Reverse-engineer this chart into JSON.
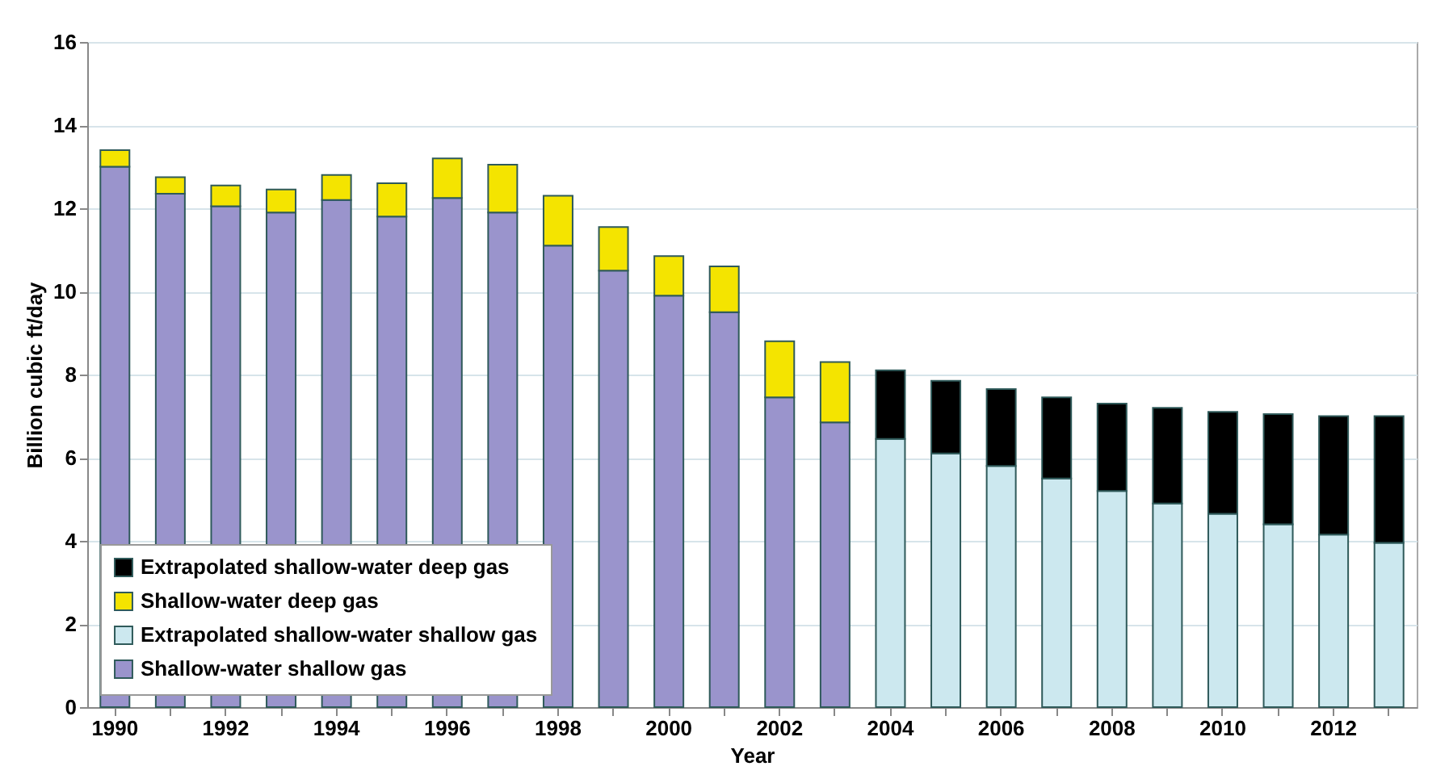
{
  "chart_data": {
    "type": "bar",
    "stacked": true,
    "xlabel": "Year",
    "ylabel": "Billion cubic ft/day",
    "categories": [
      "1990",
      null,
      "1992",
      null,
      "1994",
      null,
      "1996",
      null,
      "1998",
      null,
      "2000",
      null,
      "2002",
      null,
      "2004",
      null,
      "2006",
      null,
      "2008",
      null,
      "2010",
      null,
      "2012",
      null
    ],
    "series": [
      {
        "name": "Shallow-water shallow gas",
        "color": "#9a94cc",
        "values": [
          13.0,
          12.35,
          12.05,
          11.9,
          12.2,
          11.8,
          12.25,
          11.9,
          11.1,
          10.5,
          9.9,
          9.5,
          7.45,
          6.85,
          null,
          null,
          null,
          null,
          null,
          null,
          null,
          null,
          null,
          null
        ]
      },
      {
        "name": "Extrapolated shallow-water shallow gas",
        "color": "#cce8ef",
        "values": [
          null,
          null,
          null,
          null,
          null,
          null,
          null,
          null,
          null,
          null,
          null,
          null,
          null,
          null,
          6.45,
          6.1,
          5.8,
          5.5,
          5.2,
          4.9,
          4.65,
          4.4,
          4.15,
          3.95
        ]
      },
      {
        "name": "Shallow-water deep gas",
        "color": "#f4e400",
        "values": [
          0.4,
          0.4,
          0.5,
          0.55,
          0.6,
          0.8,
          0.95,
          1.15,
          1.2,
          1.05,
          0.95,
          1.1,
          1.35,
          1.45,
          null,
          null,
          null,
          null,
          null,
          null,
          null,
          null,
          null,
          null
        ]
      },
      {
        "name": "Extrapolated shallow-water deep gas",
        "color": "#000000",
        "values": [
          null,
          null,
          null,
          null,
          null,
          null,
          null,
          null,
          null,
          null,
          null,
          null,
          null,
          null,
          1.65,
          1.75,
          1.85,
          1.95,
          2.1,
          2.3,
          2.45,
          2.65,
          2.85,
          3.05
        ]
      }
    ],
    "ylim": [
      0,
      16
    ],
    "yticks": [
      0,
      2,
      4,
      6,
      8,
      10,
      12,
      14,
      16
    ],
    "grid": "y",
    "legend": "bottom left"
  }
}
